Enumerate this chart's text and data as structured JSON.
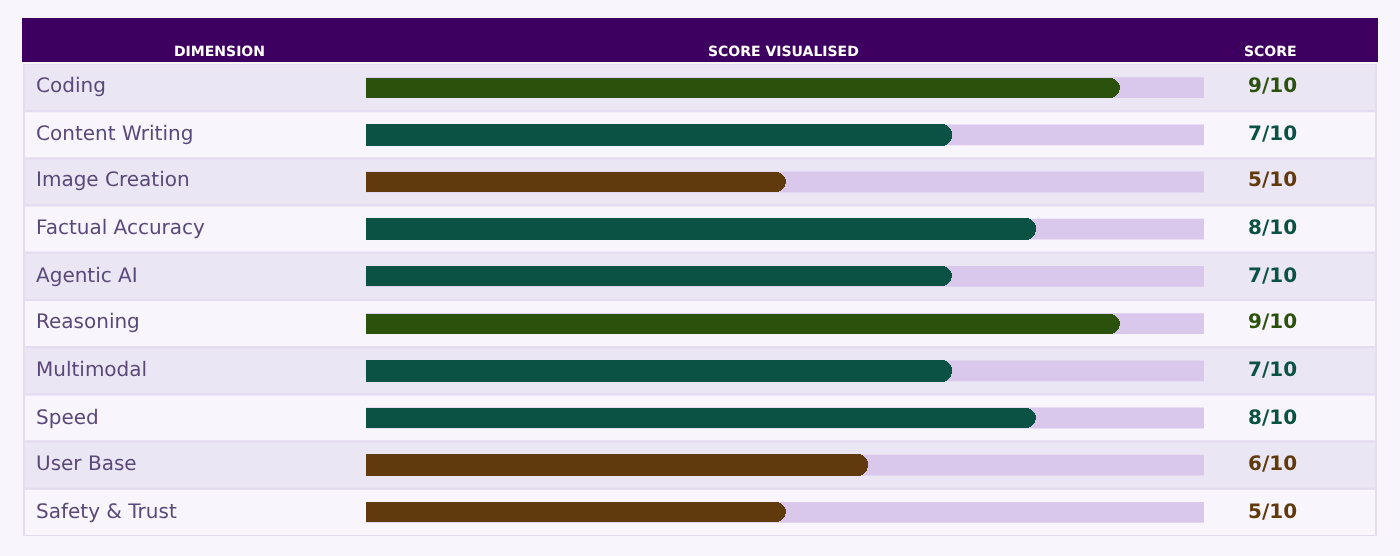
{
  "chart_data": {
    "type": "bar",
    "orientation": "horizontal",
    "ylabel": "DIMENSION",
    "xlabel": "SCORE VISUALISED",
    "annotations": [
      "SCORE"
    ],
    "categories": [
      "Coding",
      "Content Writing",
      "Image Creation",
      "Factual Accuracy",
      "Agentic AI",
      "Reasoning",
      "Multimodal",
      "Speed",
      "User Base",
      "Safety & Trust"
    ],
    "values": [
      0.9,
      0.7,
      0.5,
      0.8,
      0.7,
      0.9,
      0.7,
      0.8,
      0.6,
      0.5
    ],
    "colors": [
      "#2b520c",
      "#0b5244",
      "#603a0c",
      "#0b5244",
      "#0b5244",
      "#2b520c",
      "#0b5244",
      "#0b5244",
      "#603a0c",
      "#603a0c"
    ],
    "value_labels": [
      "9/10",
      "7/10",
      "5/10",
      "8/10",
      "7/10",
      "9/10",
      "7/10",
      "8/10",
      "6/10",
      "5/10"
    ],
    "xlim": [
      0,
      1
    ],
    "tick_labels": false,
    "grid": false,
    "legend": false
  }
}
